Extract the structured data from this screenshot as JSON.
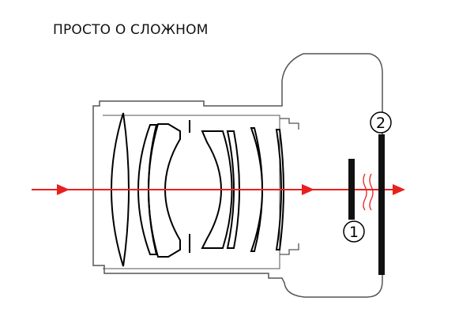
{
  "title": "ПРОСТО О СЛОЖНОМ",
  "markers": [
    {
      "label": "1"
    },
    {
      "label": "2"
    }
  ],
  "colors": {
    "outline": "#555555",
    "lens_stroke": "#000000",
    "light_ray": "#e8201e",
    "sensor": "#111111"
  }
}
